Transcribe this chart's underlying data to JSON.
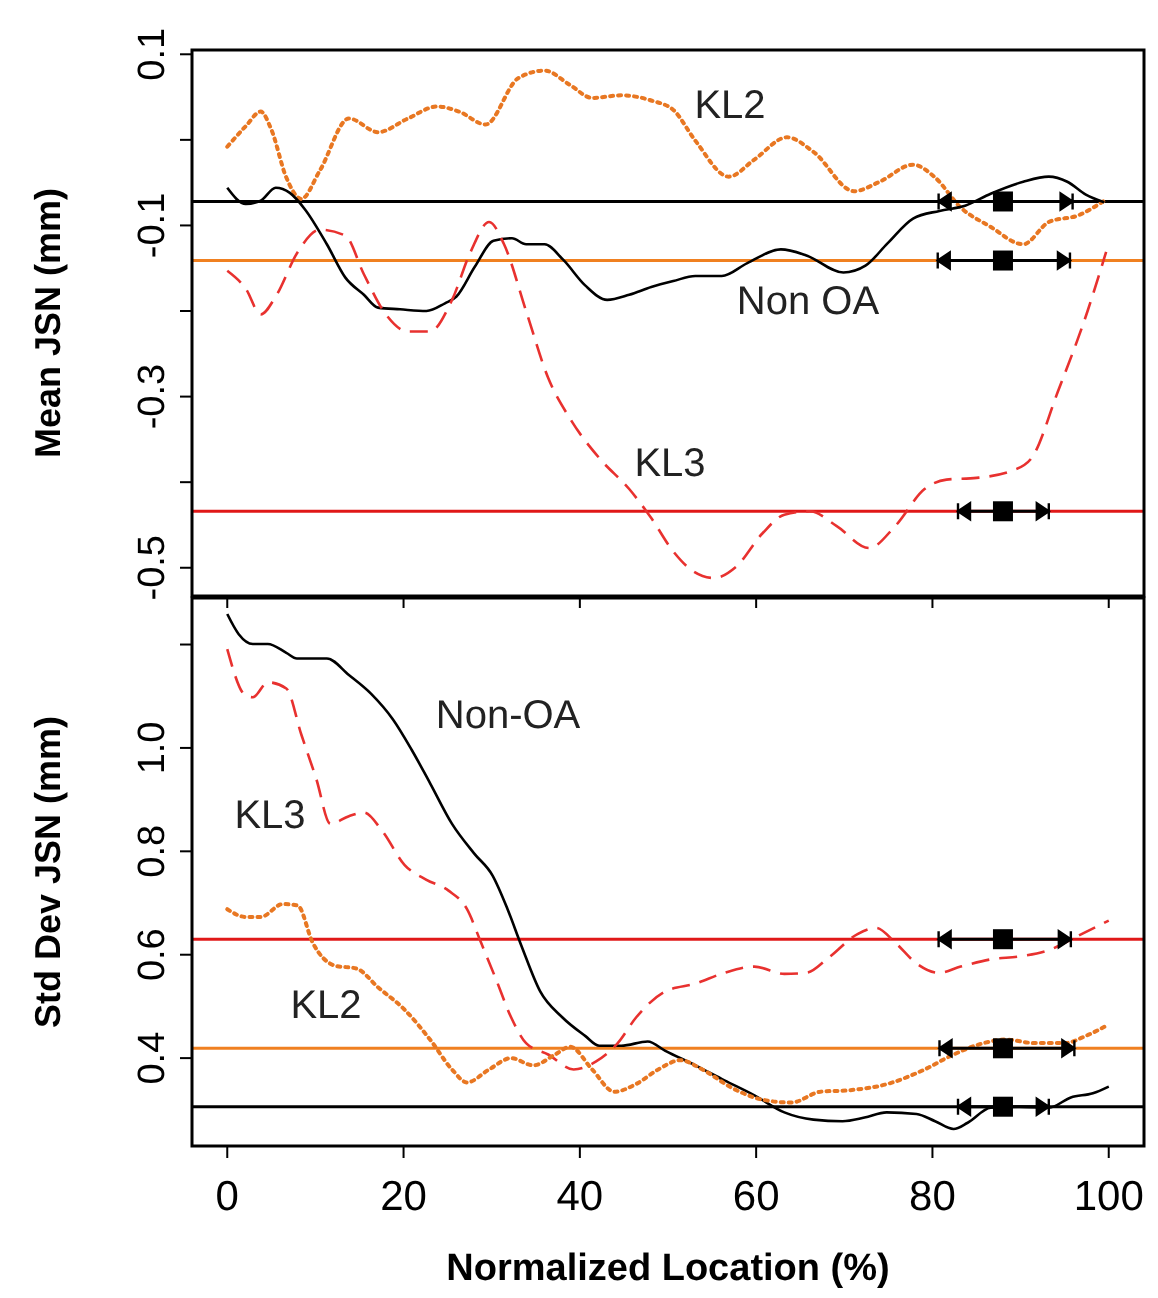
{
  "chart_data": [
    {
      "type": "line",
      "ylabel": "Mean JSN (mm)",
      "xlim": [
        -4,
        104
      ],
      "ylim": [
        -0.533,
        0.105
      ],
      "tick_labels": "y",
      "yticks": [
        0.1,
        {
          "value": 0,
          "label": null
        },
        -0.1,
        {
          "value": -0.2,
          "label": null
        },
        -0.3,
        {
          "value": -0.4,
          "label": null
        },
        -0.5
      ],
      "series": [
        {
          "name": "KL2",
          "color": "#e87722",
          "line_style": "dotted",
          "x": [
            0,
            2.1,
            3.8,
            5,
            6.7,
            8.4,
            10.5,
            13.8,
            17.1,
            20.5,
            23.8,
            26.3,
            29.3,
            33,
            36,
            38.9,
            41.4,
            44.7,
            48.1,
            50.6,
            53.1,
            56.9,
            59.8,
            63.5,
            66.5,
            71.1,
            74,
            77.8,
            80.3,
            83.2,
            86.5,
            90.3,
            93.2,
            96.6,
            99.5
          ],
          "values": [
            -0.008,
            0.016,
            0.033,
            0.012,
            -0.044,
            -0.069,
            -0.036,
            0.025,
            0.009,
            0.025,
            0.039,
            0.033,
            0.018,
            0.072,
            0.081,
            0.064,
            0.049,
            0.052,
            0.046,
            0.035,
            -0.001,
            -0.043,
            -0.023,
            0.003,
            -0.014,
            -0.06,
            -0.049,
            -0.029,
            -0.044,
            -0.079,
            -0.101,
            -0.122,
            -0.096,
            -0.088,
            -0.071
          ]
        },
        {
          "name": "Non OA",
          "color": "#000000",
          "line_style": "solid",
          "x": [
            0,
            2.1,
            3.8,
            5.5,
            7.1,
            8.8,
            11.3,
            13.4,
            15.5,
            17.1,
            19.6,
            22.6,
            24.7,
            26,
            28.1,
            30.2,
            32.3,
            33.9,
            36,
            38.1,
            40.6,
            43.1,
            45.6,
            48.1,
            50.6,
            53.1,
            56.1,
            59,
            62.8,
            65.7,
            69.9,
            72.4,
            74.9,
            77.8,
            80.8,
            83.7,
            86.6,
            90.3,
            93.2,
            95.3,
            97.4,
            99.5
          ],
          "values": [
            -0.056,
            -0.075,
            -0.071,
            -0.056,
            -0.062,
            -0.081,
            -0.122,
            -0.161,
            -0.181,
            -0.196,
            -0.198,
            -0.2,
            -0.191,
            -0.183,
            -0.148,
            -0.118,
            -0.115,
            -0.122,
            -0.122,
            -0.14,
            -0.17,
            -0.187,
            -0.181,
            -0.172,
            -0.165,
            -0.159,
            -0.159,
            -0.144,
            -0.128,
            -0.135,
            -0.155,
            -0.147,
            -0.121,
            -0.092,
            -0.083,
            -0.077,
            -0.063,
            -0.049,
            -0.043,
            -0.049,
            -0.064,
            -0.073
          ]
        },
        {
          "name": "KL3",
          "color": "#e8312f",
          "line_style": "dashed",
          "x": [
            0,
            2.1,
            3.8,
            5.5,
            8,
            10.5,
            13.4,
            15.5,
            18,
            20.5,
            23,
            25.5,
            27.6,
            29.7,
            31.4,
            33.9,
            36.4,
            38.9,
            42.3,
            45.6,
            48.1,
            50.6,
            52.7,
            55.2,
            57.7,
            60.7,
            63.2,
            66.1,
            69.1,
            72.8,
            75.8,
            79.1,
            81.6,
            85,
            89.2,
            91.3,
            94.2,
            97.6,
            99.7
          ],
          "values": [
            -0.153,
            -0.174,
            -0.204,
            -0.183,
            -0.131,
            -0.105,
            -0.112,
            -0.157,
            -0.204,
            -0.224,
            -0.224,
            -0.187,
            -0.131,
            -0.096,
            -0.122,
            -0.2,
            -0.278,
            -0.326,
            -0.373,
            -0.408,
            -0.442,
            -0.481,
            -0.503,
            -0.512,
            -0.499,
            -0.46,
            -0.438,
            -0.434,
            -0.451,
            -0.477,
            -0.451,
            -0.408,
            -0.397,
            -0.395,
            -0.386,
            -0.371,
            -0.295,
            -0.2,
            -0.131
          ]
        },
        {
          "type": "scatter",
          "marker": "square",
          "color": "#000000",
          "x": [
            88,
            88,
            88
          ],
          "values": [
            -0.072,
            -0.141,
            -0.434
          ],
          "xerrors": [
            [
              80.7,
              95.9
            ],
            [
              80.6,
              95.6
            ],
            [
              82.9,
              93.2
            ]
          ]
        }
      ],
      "ref_lines": [
        {
          "axis": "y",
          "value": -0.072,
          "color": "#000000"
        },
        {
          "axis": "y",
          "value": -0.141,
          "color": "#f08020"
        },
        {
          "axis": "y",
          "value": -0.434,
          "color": "#e01818"
        }
      ]
    },
    {
      "type": "line",
      "xlabel": "Normalized Location (%)",
      "ylabel": "Std Dev JSN (mm)",
      "xlim": [
        -4,
        104
      ],
      "ylim": [
        0.23,
        1.29
      ],
      "xticks": [
        0,
        20,
        40,
        60,
        80,
        100
      ],
      "yticks": [
        0.4,
        0.6,
        0.8,
        {
          "value": 1,
          "label": "1.0"
        },
        {
          "value": 1.2,
          "label": null
        }
      ],
      "series": [
        {
          "name": "Non-OA",
          "color": "#000000",
          "line_style": "solid",
          "x": [
            0,
            1.3,
            2.9,
            4.6,
            6.7,
            7.9,
            11.3,
            13.8,
            16.3,
            18.8,
            20.9,
            23,
            25.5,
            28,
            30.1,
            31.8,
            33.4,
            35.5,
            38,
            40.6,
            42.2,
            44.7,
            47.7,
            49.7,
            53.1,
            56.4,
            59.8,
            63.2,
            66.5,
            69.8,
            72.3,
            74.8,
            78.2,
            80.3,
            82.4,
            84,
            86.6,
            89.9,
            93.2,
            95.7,
            98.2,
            100
          ],
          "values": [
            1.259,
            1.22,
            1.201,
            1.201,
            1.184,
            1.173,
            1.173,
            1.141,
            1.105,
            1.055,
            0.997,
            0.932,
            0.853,
            0.796,
            0.753,
            0.688,
            0.616,
            0.529,
            0.479,
            0.443,
            0.424,
            0.424,
            0.432,
            0.414,
            0.386,
            0.357,
            0.328,
            0.295,
            0.281,
            0.278,
            0.285,
            0.295,
            0.292,
            0.278,
            0.263,
            0.275,
            0.304,
            0.306,
            0.304,
            0.324,
            0.332,
            0.345
          ]
        },
        {
          "name": "KL3",
          "color": "#e8312f",
          "line_style": "dashed",
          "x": [
            0,
            2.1,
            2.9,
            4.6,
            6.7,
            8.4,
            10.1,
            11.7,
            13.8,
            15.5,
            17.6,
            20.1,
            22.6,
            25.1,
            27.2,
            28.8,
            30.5,
            32.2,
            33.9,
            36.4,
            39.3,
            41.8,
            44.3,
            46.4,
            49.7,
            53.1,
            56.4,
            59.8,
            63.2,
            65.7,
            68.2,
            71.5,
            73.6,
            75.8,
            78.2,
            80.7,
            83.2,
            86.6,
            90,
            93.2,
            96.6,
            100
          ],
          "values": [
            1.191,
            1.101,
            1.098,
            1.127,
            1.115,
            1.026,
            0.94,
            0.853,
            0.868,
            0.875,
            0.839,
            0.774,
            0.745,
            0.724,
            0.688,
            0.623,
            0.552,
            0.479,
            0.429,
            0.407,
            0.378,
            0.393,
            0.429,
            0.479,
            0.529,
            0.544,
            0.565,
            0.577,
            0.563,
            0.565,
            0.594,
            0.64,
            0.652,
            0.623,
            0.583,
            0.565,
            0.577,
            0.591,
            0.597,
            0.609,
            0.637,
            0.666
          ]
        },
        {
          "name": "KL2",
          "color": "#e87722",
          "line_style": "dotted",
          "x": [
            0,
            2.1,
            3.8,
            6.3,
            8,
            9.7,
            12.2,
            14.7,
            17.1,
            20.1,
            23,
            25.5,
            27.2,
            29.7,
            32.2,
            34.7,
            37.2,
            38.9,
            41.4,
            43.9,
            46.4,
            48.9,
            51.4,
            53.9,
            57.3,
            60.6,
            64,
            67.3,
            70.7,
            74.9,
            79.1,
            82.4,
            85.8,
            88.3,
            91.6,
            95,
            97.4,
            100
          ],
          "values": [
            0.688,
            0.673,
            0.673,
            0.698,
            0.695,
            0.623,
            0.579,
            0.573,
            0.537,
            0.494,
            0.436,
            0.378,
            0.353,
            0.378,
            0.4,
            0.386,
            0.407,
            0.422,
            0.378,
            0.335,
            0.35,
            0.378,
            0.396,
            0.378,
            0.342,
            0.32,
            0.314,
            0.335,
            0.338,
            0.35,
            0.378,
            0.407,
            0.429,
            0.436,
            0.429,
            0.429,
            0.443,
            0.465
          ]
        },
        {
          "type": "scatter",
          "marker": "square",
          "color": "#000000",
          "x": [
            88,
            88,
            88
          ],
          "values": [
            0.63,
            0.419,
            0.306
          ],
          "xerrors": [
            [
              80.7,
              95.7
            ],
            [
              80.8,
              96.1
            ],
            [
              82.9,
              93.2
            ]
          ]
        }
      ],
      "ref_lines": [
        {
          "axis": "y",
          "value": 0.63,
          "color": "#e01818"
        },
        {
          "axis": "y",
          "value": 0.419,
          "color": "#f08020"
        },
        {
          "axis": "y",
          "value": 0.306,
          "color": "#000000"
        }
      ]
    }
  ]
}
